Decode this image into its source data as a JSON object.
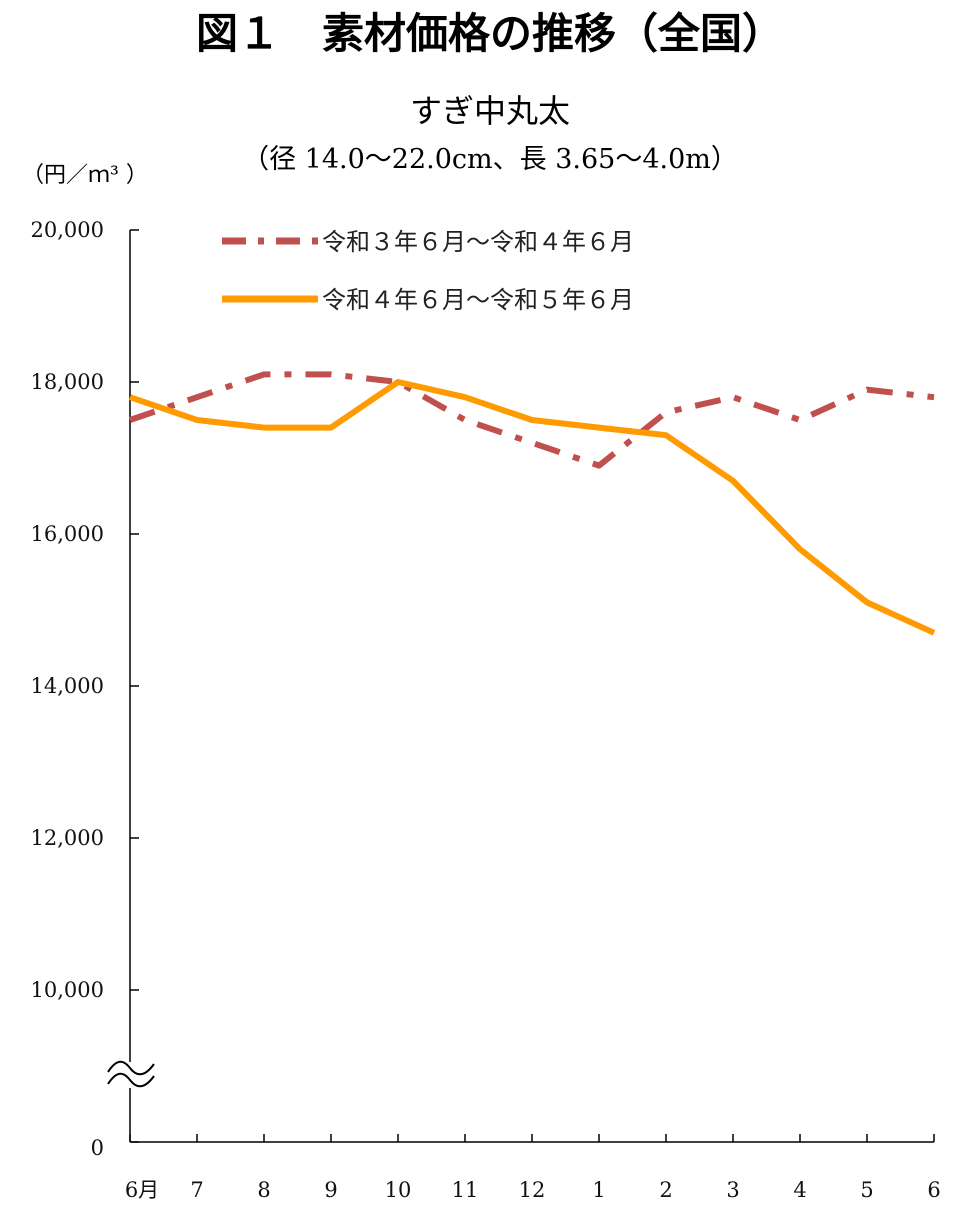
{
  "chart_data": {
    "type": "line",
    "title": "図１　素材価格の推移（全国）",
    "subtitle": "すぎ中丸太",
    "spec": "（径 14.0～22.0cm、長 3.65～4.0m）",
    "ylabel": "（円／ｍ³ ）",
    "ylim": [
      0,
      20000
    ],
    "axis_break": "0-8000",
    "y_ticks": [
      {
        "value": 20000,
        "label": "20,000"
      },
      {
        "value": 18000,
        "label": "18,000"
      },
      {
        "value": 16000,
        "label": "16,000"
      },
      {
        "value": 14000,
        "label": "14,000"
      },
      {
        "value": 12000,
        "label": "12,000"
      },
      {
        "value": 10000,
        "label": "10,000"
      },
      {
        "value": 0,
        "label": "0"
      }
    ],
    "categories": [
      "6月",
      "7",
      "8",
      "9",
      "10",
      "11",
      "12",
      "1",
      "2",
      "3",
      "4",
      "5",
      "6"
    ],
    "legend_position": "top",
    "series": [
      {
        "name": "令和３年６月～令和４年６月",
        "color": "#c0504d",
        "style": "dash-dot",
        "values": [
          17500,
          17800,
          18100,
          18100,
          18000,
          17500,
          17200,
          16900,
          17600,
          17800,
          17500,
          17900,
          17800
        ]
      },
      {
        "name": "令和４年６月～令和５年６月",
        "color": "#ff9a00",
        "style": "solid",
        "values": [
          17800,
          17500,
          17400,
          17400,
          18000,
          17800,
          17500,
          17400,
          17300,
          16700,
          15800,
          15100,
          14700
        ]
      }
    ]
  }
}
